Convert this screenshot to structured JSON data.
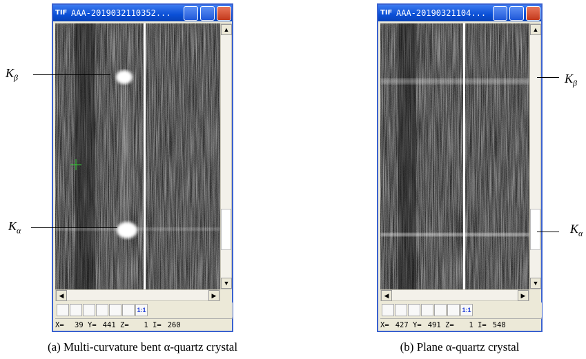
{
  "panels": [
    {
      "window": {
        "icon": "TIF",
        "title": "AAA-2019032110352..."
      },
      "toolbar": {
        "zoom": "1:1"
      },
      "status": [
        {
          "label": "X=",
          "value": 39
        },
        {
          "label": "Y=",
          "value": 441
        },
        {
          "label": "Z=",
          "value": 1
        },
        {
          "label": "I=",
          "value": 260
        }
      ],
      "labels": [
        {
          "base": "K",
          "sub": "β"
        },
        {
          "base": "K",
          "sub": "α"
        }
      ],
      "caption": "(a) Multi-curvature bent α-quartz crystal"
    },
    {
      "window": {
        "icon": "TIF",
        "title": "AAA-20190321104..."
      },
      "toolbar": {
        "zoom": "1:1"
      },
      "status": [
        {
          "label": "X=",
          "value": 427
        },
        {
          "label": "Y=",
          "value": 491
        },
        {
          "label": "Z=",
          "value": 1
        },
        {
          "label": "I=",
          "value": 548
        }
      ],
      "labels": [
        {
          "base": "K",
          "sub": "β"
        },
        {
          "base": "K",
          "sub": "α"
        }
      ],
      "caption": "(b) Plane α-quartz crystal"
    }
  ]
}
